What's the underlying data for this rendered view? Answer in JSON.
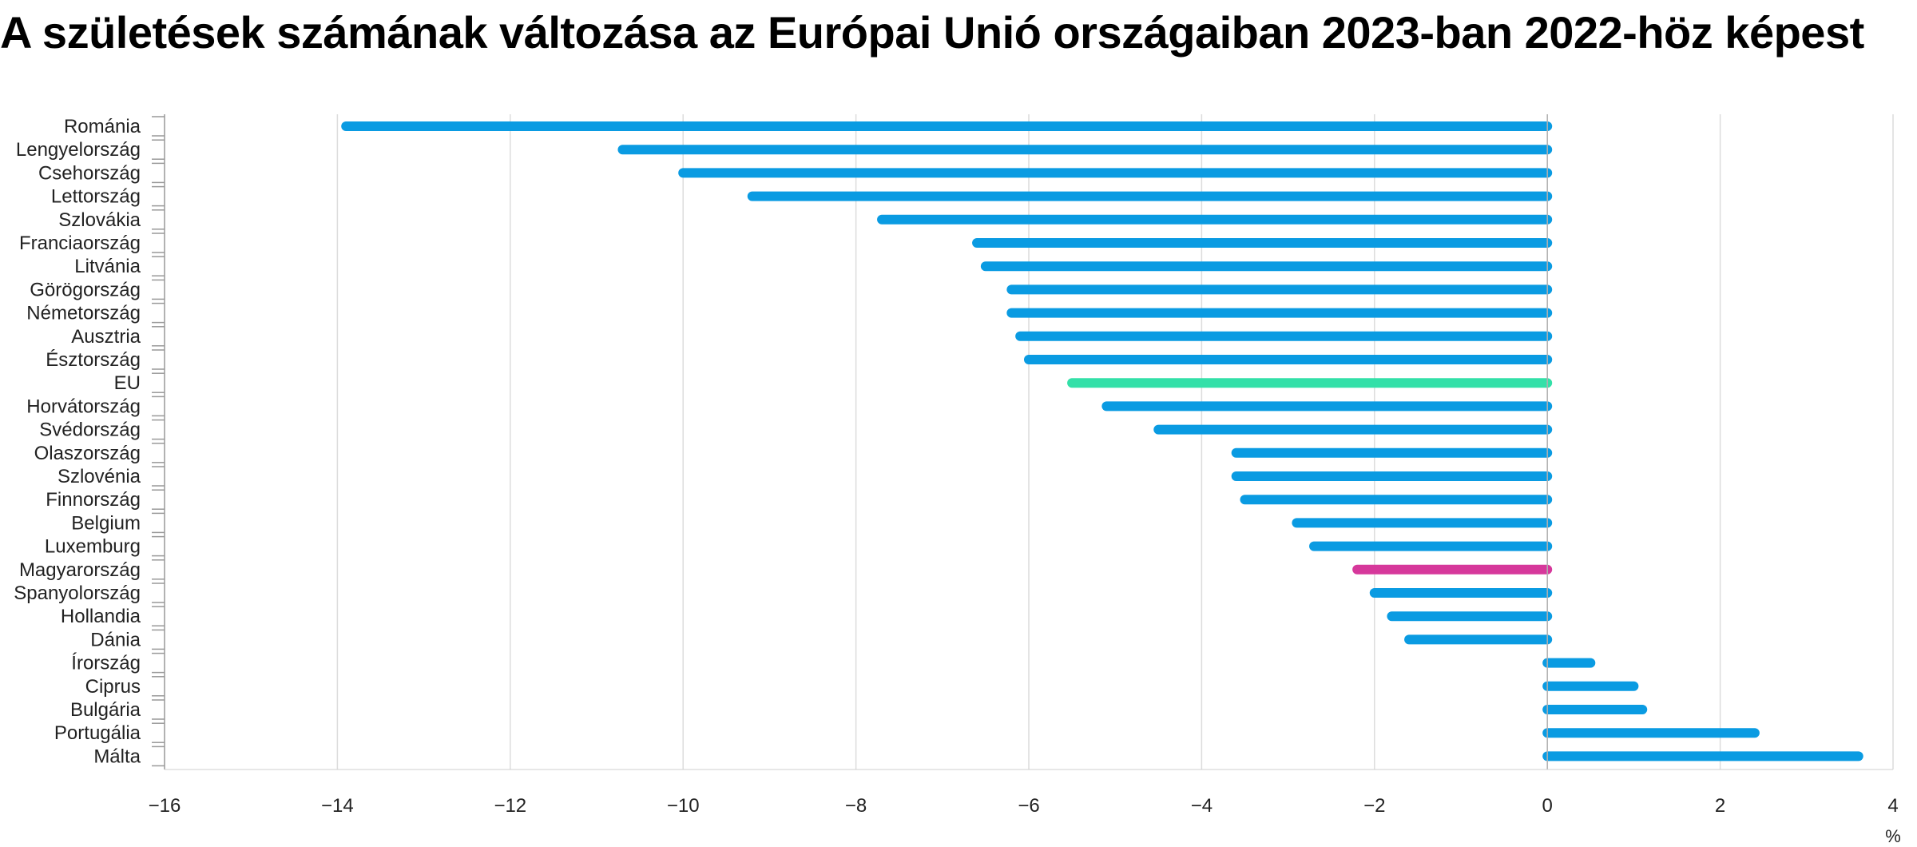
{
  "chart_data": {
    "type": "bar",
    "orientation": "horizontal",
    "title": "A születések számának változása az Európai Unió országaiban 2023-ban 2022-höz képest",
    "xlabel": "%",
    "ylabel": "",
    "xlim": [
      -16,
      4
    ],
    "xticks": [
      -16,
      -14,
      -12,
      -10,
      -8,
      -6,
      -4,
      -2,
      0,
      2,
      4
    ],
    "xtick_labels": [
      "−16",
      "−14",
      "−12",
      "−10",
      "−8",
      "−6",
      "−4",
      "−2",
      "0",
      "2",
      "4"
    ],
    "grid": true,
    "categories": [
      "Románia",
      "Lengyelország",
      "Csehország",
      "Lettország",
      "Szlovákia",
      "Franciaország",
      "Litvánia",
      "Görögország",
      "Németország",
      "Ausztria",
      "Észtország",
      "EU",
      "Horvátország",
      "Svédország",
      "Olaszország",
      "Szlovénia",
      "Finnország",
      "Belgium",
      "Luxemburg",
      "Magyarország",
      "Spanyolország",
      "Hollandia",
      "Dánia",
      "Írország",
      "Ciprus",
      "Bulgária",
      "Portugália",
      "Málta"
    ],
    "values": [
      -13.9,
      -10.7,
      -10.0,
      -9.2,
      -7.7,
      -6.6,
      -6.5,
      -6.2,
      -6.2,
      -6.1,
      -6.0,
      -5.5,
      -5.1,
      -4.5,
      -3.6,
      -3.6,
      -3.5,
      -2.9,
      -2.7,
      -2.2,
      -2.0,
      -1.8,
      -1.6,
      0.5,
      1.0,
      1.1,
      2.4,
      3.6
    ],
    "colors": {
      "default": "#0a9be2",
      "highlights": {
        "EU": "#33e0a8",
        "Magyarország": "#d6389b"
      }
    }
  }
}
